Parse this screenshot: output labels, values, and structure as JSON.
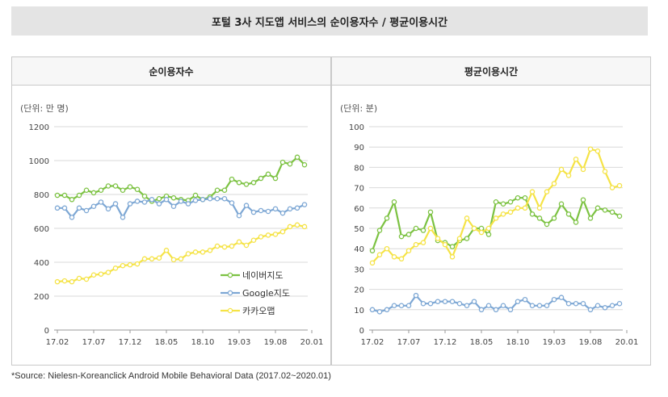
{
  "title": "포털 3사 지도앱 서비스의 순이용자수 / 평균이용시간",
  "source": "*Source: Nielesn-Koreanclick Android Mobile Behavioral Data (2017.02~2020.01)",
  "colors": {
    "naver": "#7cc242",
    "google": "#7da7d4",
    "kakao": "#f5e346",
    "grid": "#d9d9d9",
    "axis": "#9a9a9a"
  },
  "chart_data": [
    {
      "type": "line",
      "title": "순이용자수",
      "unit_label": "(단위: 만 명)",
      "ylim": [
        0,
        1200
      ],
      "yticks": [
        "0",
        "200",
        "400",
        "600",
        "800",
        "1000",
        "1200"
      ],
      "xtick_labels": [
        "17.02",
        "17.07",
        "17.12",
        "18.05",
        "18.10",
        "19.03",
        "19.08",
        "20.01"
      ],
      "legend": [
        "네이버지도",
        "Google지도",
        "카카오맵"
      ],
      "series": [
        {
          "name": "네이버지도",
          "values": [
            795,
            795,
            770,
            795,
            825,
            810,
            825,
            850,
            850,
            825,
            845,
            830,
            790,
            760,
            775,
            790,
            780,
            770,
            765,
            795,
            770,
            785,
            825,
            825,
            890,
            870,
            860,
            870,
            895,
            920,
            895,
            990,
            980,
            1020,
            975
          ]
        },
        {
          "name": "Google지도",
          "values": [
            720,
            720,
            665,
            720,
            705,
            730,
            755,
            715,
            745,
            665,
            745,
            760,
            755,
            770,
            745,
            770,
            730,
            760,
            745,
            765,
            770,
            775,
            775,
            775,
            750,
            675,
            735,
            695,
            705,
            700,
            715,
            690,
            715,
            720,
            740
          ]
        },
        {
          "name": "카카오맵",
          "values": [
            285,
            290,
            285,
            305,
            300,
            325,
            330,
            340,
            365,
            380,
            385,
            390,
            420,
            420,
            425,
            470,
            415,
            420,
            450,
            460,
            460,
            470,
            495,
            490,
            495,
            520,
            500,
            530,
            550,
            560,
            565,
            580,
            610,
            620,
            610
          ]
        }
      ]
    },
    {
      "type": "line",
      "title": "평균이용시간",
      "unit_label": "(단위: 분)",
      "ylim": [
        0,
        100
      ],
      "yticks": [
        "0",
        "10",
        "20",
        "30",
        "40",
        "50",
        "60",
        "70",
        "80",
        "90",
        "100"
      ],
      "xtick_labels": [
        "17.02",
        "17.07",
        "17.12",
        "18.05",
        "18.10",
        "19.03",
        "19.08",
        "20.01"
      ],
      "series": [
        {
          "name": "네이버지도",
          "values": [
            39,
            49,
            55,
            63,
            46,
            47,
            50,
            49,
            58,
            44,
            43,
            41,
            44,
            45,
            50,
            50,
            47,
            63,
            62,
            63,
            65,
            65,
            57,
            55,
            52,
            55,
            62,
            57,
            53,
            64,
            55,
            60,
            59,
            58,
            56
          ]
        },
        {
          "name": "Google지도",
          "values": [
            10,
            9,
            10,
            12,
            12,
            12,
            17,
            13,
            13,
            14,
            14,
            14,
            13,
            12,
            14,
            10,
            12,
            10,
            12,
            10,
            14,
            15,
            12,
            12,
            12,
            15,
            16,
            13,
            13,
            13,
            10,
            12,
            11,
            12,
            13
          ]
        },
        {
          "name": "카카오맵",
          "values": [
            33,
            37,
            40,
            36,
            35,
            39,
            42,
            43,
            50,
            45,
            42,
            36,
            45,
            55,
            50,
            48,
            50,
            55,
            57,
            58,
            60,
            60,
            68,
            60,
            68,
            72,
            79,
            76,
            84,
            79,
            89,
            88,
            78,
            70,
            71
          ]
        }
      ]
    }
  ]
}
